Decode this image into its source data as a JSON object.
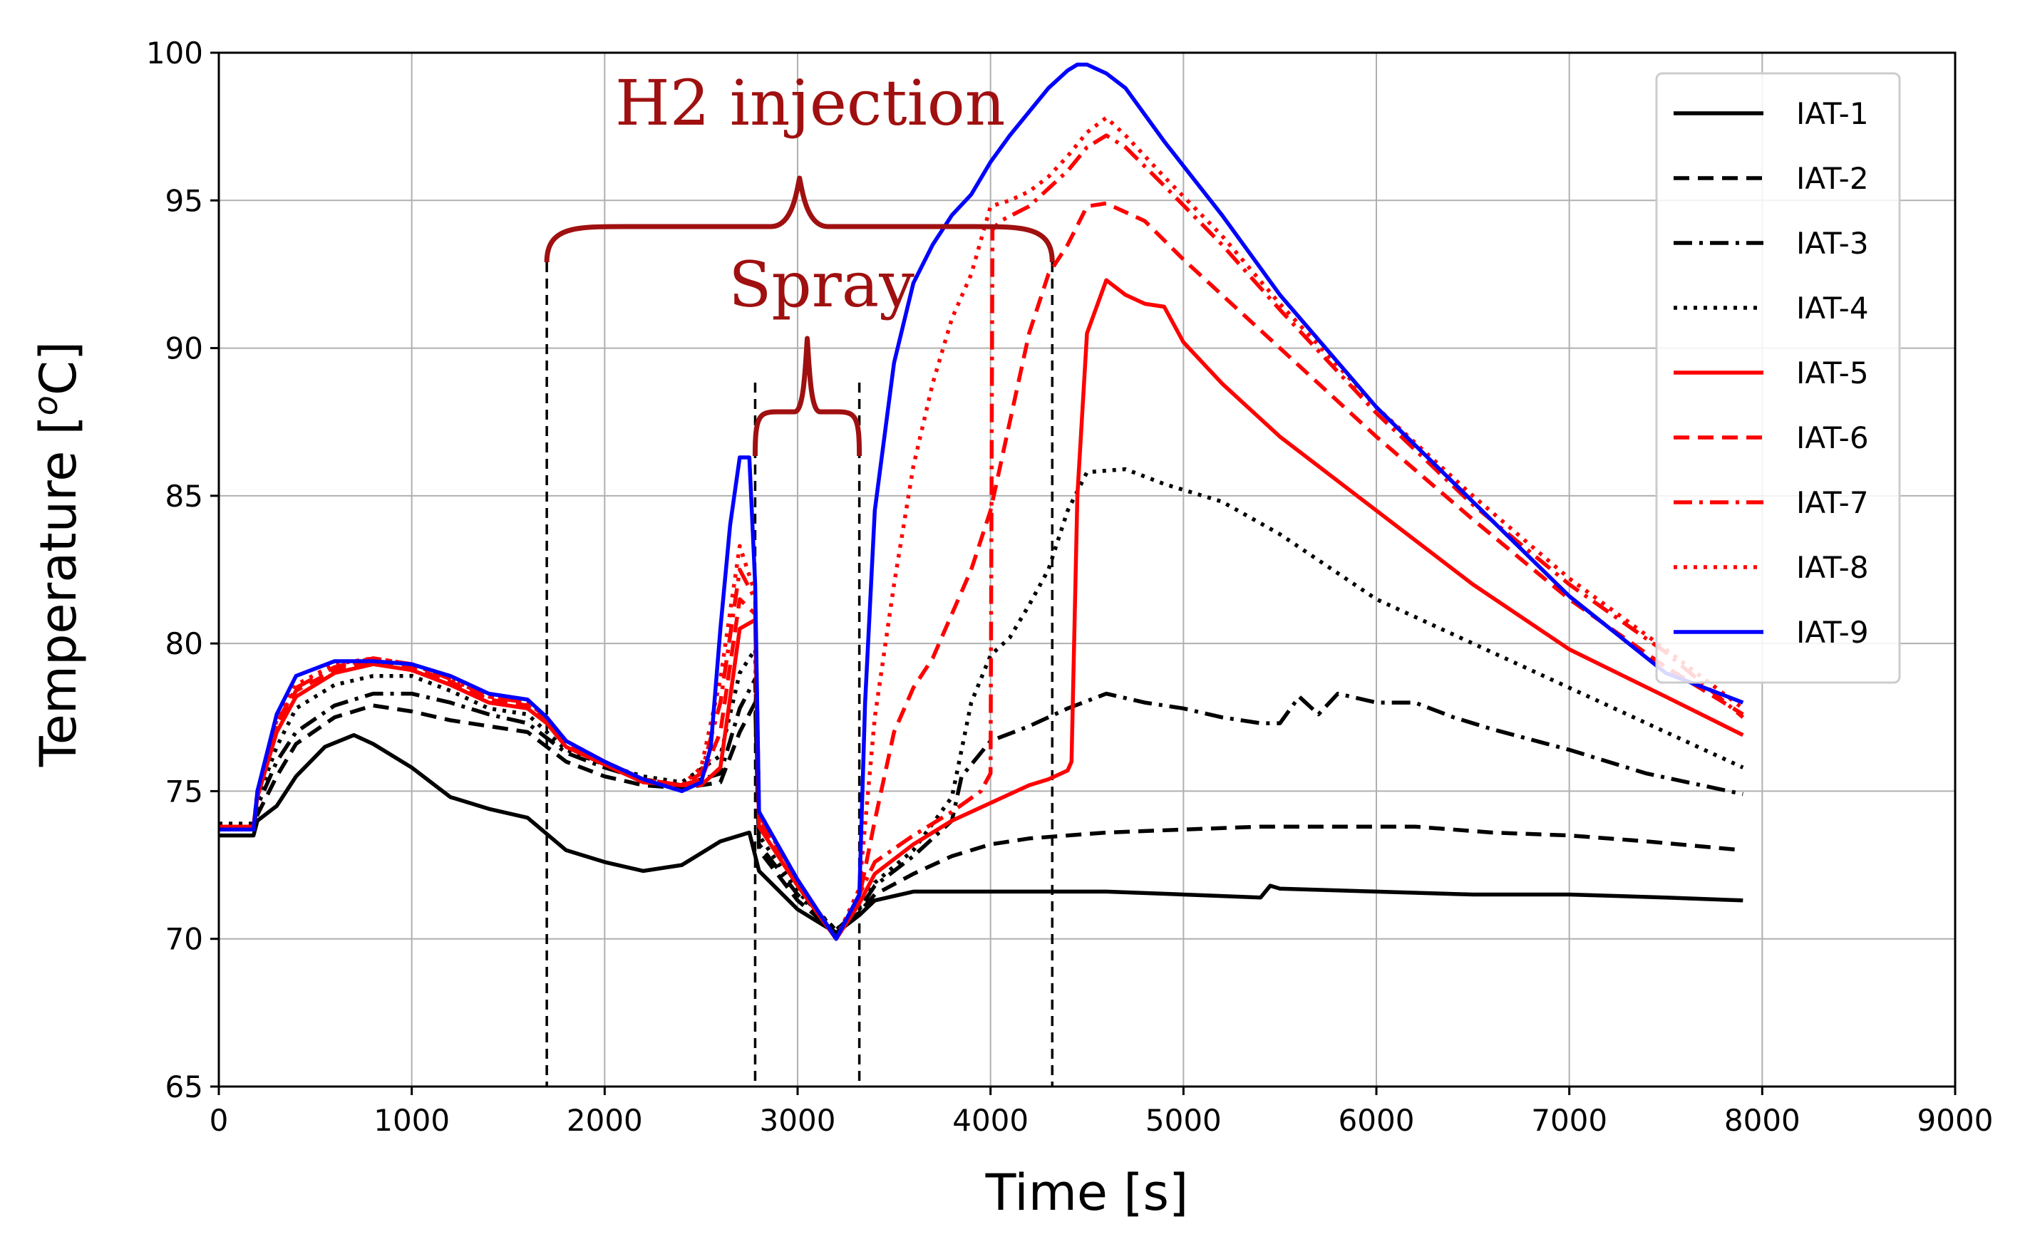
{
  "chart_data": {
    "type": "line",
    "title": "",
    "xlabel": "Time [s]",
    "ylabel_prefix": "Temperature [",
    "ylabel_super": "o",
    "ylabel_suffix": "C]",
    "xlim": [
      0,
      9000
    ],
    "ylim": [
      65,
      100
    ],
    "xticks": [
      0,
      1000,
      2000,
      3000,
      4000,
      5000,
      6000,
      7000,
      8000,
      9000
    ],
    "yticks": [
      65,
      70,
      75,
      80,
      85,
      90,
      95,
      100
    ],
    "grid": true,
    "legend_position": "top-right",
    "series": [
      {
        "name": "IAT-1",
        "color": "#000000",
        "dash": "solid",
        "x": [
          0,
          180,
          200,
          300,
          400,
          550,
          700,
          800,
          1000,
          1200,
          1400,
          1600,
          1800,
          2000,
          2200,
          2400,
          2600,
          2750,
          2800,
          3000,
          3200,
          3320,
          3400,
          3600,
          3800,
          4000,
          4300,
          4600,
          5000,
          5400,
          5450,
          5500,
          6000,
          6500,
          7000,
          7500,
          7900
        ],
        "y": [
          73.5,
          73.5,
          74.0,
          74.5,
          75.5,
          76.5,
          76.9,
          76.6,
          75.8,
          74.8,
          74.4,
          74.1,
          73.0,
          72.6,
          72.3,
          72.5,
          73.3,
          73.6,
          72.3,
          71.0,
          70.2,
          70.8,
          71.3,
          71.6,
          71.6,
          71.6,
          71.6,
          71.6,
          71.5,
          71.4,
          71.8,
          71.7,
          71.6,
          71.5,
          71.5,
          71.4,
          71.3
        ]
      },
      {
        "name": "IAT-2",
        "color": "#000000",
        "dash": "dashed",
        "x": [
          0,
          180,
          200,
          300,
          400,
          600,
          800,
          1000,
          1200,
          1400,
          1600,
          1800,
          2000,
          2200,
          2400,
          2600,
          2700,
          2780,
          2800,
          3000,
          3200,
          3320,
          3400,
          3600,
          3800,
          4000,
          4200,
          4400,
          4600,
          5000,
          5400,
          5800,
          6200,
          6600,
          7000,
          7400,
          7900
        ],
        "y": [
          73.7,
          73.7,
          74.2,
          75.5,
          76.6,
          77.5,
          77.9,
          77.7,
          77.4,
          77.2,
          77.0,
          76.0,
          75.5,
          75.2,
          75.1,
          75.3,
          77.0,
          78.0,
          73.0,
          71.3,
          70.2,
          70.9,
          71.5,
          72.2,
          72.8,
          73.2,
          73.4,
          73.5,
          73.6,
          73.7,
          73.8,
          73.8,
          73.8,
          73.6,
          73.5,
          73.3,
          73.0
        ]
      },
      {
        "name": "IAT-3",
        "color": "#000000",
        "dash": "dashdot",
        "x": [
          0,
          180,
          200,
          300,
          400,
          600,
          800,
          1000,
          1200,
          1400,
          1600,
          1800,
          2000,
          2200,
          2400,
          2600,
          2700,
          2780,
          2800,
          3000,
          3200,
          3320,
          3400,
          3600,
          3800,
          3850,
          4000,
          4200,
          4400,
          4600,
          4800,
          5000,
          5200,
          5400,
          5500,
          5600,
          5700,
          5800,
          6000,
          6200,
          6400,
          6600,
          7000,
          7400,
          7900
        ],
        "y": [
          73.8,
          73.8,
          74.5,
          76.0,
          77.0,
          77.9,
          78.3,
          78.3,
          78.0,
          77.6,
          77.3,
          76.3,
          75.8,
          75.4,
          75.2,
          75.6,
          77.8,
          78.8,
          73.2,
          71.5,
          70.3,
          71.0,
          71.8,
          72.8,
          74.0,
          75.5,
          76.7,
          77.2,
          77.8,
          78.3,
          78.0,
          77.8,
          77.5,
          77.3,
          77.3,
          78.2,
          77.6,
          78.3,
          78.0,
          78.0,
          77.5,
          77.1,
          76.4,
          75.6,
          74.9
        ]
      },
      {
        "name": "IAT-4",
        "color": "#000000",
        "dash": "dotted",
        "x": [
          0,
          180,
          200,
          300,
          400,
          600,
          800,
          1000,
          1200,
          1400,
          1600,
          1800,
          2000,
          2200,
          2400,
          2600,
          2700,
          2780,
          2800,
          3000,
          3200,
          3320,
          3400,
          3600,
          3800,
          3900,
          4000,
          4100,
          4200,
          4300,
          4400,
          4500,
          4700,
          4900,
          5200,
          5500,
          6000,
          6500,
          7000,
          7500,
          7900
        ],
        "y": [
          73.9,
          73.9,
          74.7,
          76.5,
          77.8,
          78.6,
          78.9,
          78.9,
          78.4,
          77.8,
          77.6,
          76.4,
          75.9,
          75.5,
          75.3,
          76.2,
          79.0,
          79.8,
          73.5,
          71.6,
          70.3,
          71.1,
          71.9,
          73.0,
          74.8,
          78.0,
          79.6,
          80.2,
          81.3,
          82.5,
          84.5,
          85.8,
          85.9,
          85.4,
          84.8,
          83.7,
          81.5,
          80.0,
          78.5,
          77.0,
          75.8
        ]
      },
      {
        "name": "IAT-5",
        "color": "#ff0000",
        "dash": "solid",
        "x": [
          0,
          180,
          200,
          300,
          400,
          600,
          800,
          1000,
          1200,
          1400,
          1600,
          1700,
          1800,
          2000,
          2200,
          2400,
          2500,
          2600,
          2700,
          2780,
          2800,
          3000,
          3200,
          3320,
          3400,
          3600,
          3800,
          4000,
          4200,
          4300,
          4400,
          4420,
          4450,
          4500,
          4600,
          4700,
          4800,
          4900,
          5000,
          5200,
          5500,
          6000,
          6500,
          7000,
          7500,
          7900
        ],
        "y": [
          73.8,
          73.8,
          74.8,
          77.0,
          78.2,
          79.0,
          79.3,
          79.1,
          78.6,
          78.0,
          77.8,
          77.3,
          76.5,
          75.9,
          75.3,
          75.2,
          75.2,
          75.8,
          80.5,
          80.8,
          73.8,
          71.8,
          70.0,
          71.2,
          72.2,
          73.2,
          74.0,
          74.6,
          75.2,
          75.4,
          75.7,
          76.0,
          85.0,
          90.5,
          92.3,
          91.8,
          91.5,
          91.4,
          90.2,
          88.8,
          87.0,
          84.5,
          82.0,
          79.8,
          78.2,
          76.9
        ]
      },
      {
        "name": "IAT-6",
        "color": "#ff0000",
        "dash": "dashed",
        "x": [
          0,
          180,
          200,
          300,
          400,
          600,
          800,
          1000,
          1200,
          1400,
          1600,
          1700,
          1800,
          2000,
          2200,
          2400,
          2500,
          2600,
          2700,
          2780,
          2800,
          3000,
          3200,
          3320,
          3400,
          3500,
          3600,
          3700,
          3800,
          3900,
          4000,
          4100,
          4200,
          4300,
          4400,
          4500,
          4600,
          4800,
          5000,
          5500,
          6000,
          6500,
          7000,
          7500,
          7900
        ],
        "y": [
          73.8,
          73.8,
          74.9,
          77.2,
          78.4,
          79.1,
          79.4,
          79.2,
          78.7,
          78.1,
          77.9,
          77.4,
          76.6,
          75.9,
          75.3,
          75.2,
          75.4,
          77.0,
          81.5,
          81.0,
          74.0,
          71.9,
          70.0,
          71.4,
          74.0,
          77.0,
          78.5,
          79.5,
          81.0,
          82.5,
          84.5,
          87.5,
          90.5,
          92.5,
          93.5,
          94.8,
          94.9,
          94.3,
          93.0,
          90.0,
          87.0,
          84.2,
          81.5,
          79.2,
          77.6
        ]
      },
      {
        "name": "IAT-7",
        "color": "#ff0000",
        "dash": "dashdot",
        "x": [
          0,
          180,
          200,
          300,
          400,
          600,
          800,
          1000,
          1200,
          1400,
          1600,
          1700,
          1800,
          2000,
          2200,
          2400,
          2500,
          2600,
          2700,
          2780,
          2800,
          3000,
          3200,
          3320,
          3400,
          3600,
          3800,
          3950,
          4000,
          4010,
          4050,
          4200,
          4400,
          4500,
          4600,
          4700,
          4900,
          5200,
          5500,
          6000,
          6500,
          7000,
          7500,
          7900
        ],
        "y": [
          73.8,
          73.8,
          74.9,
          77.3,
          78.5,
          79.2,
          79.5,
          79.3,
          78.8,
          78.2,
          78.0,
          77.5,
          76.7,
          76.0,
          75.4,
          75.2,
          75.6,
          78.0,
          82.5,
          81.5,
          74.2,
          72.0,
          70.0,
          71.5,
          72.6,
          73.5,
          74.3,
          75.0,
          75.6,
          94.0,
          94.3,
          94.8,
          96.0,
          96.8,
          97.2,
          96.8,
          95.5,
          93.5,
          91.3,
          87.8,
          84.7,
          82.0,
          79.7,
          77.5
        ]
      },
      {
        "name": "IAT-8",
        "color": "#ff0000",
        "dash": "dotted",
        "x": [
          0,
          180,
          200,
          300,
          400,
          600,
          800,
          1000,
          1200,
          1400,
          1600,
          1700,
          1800,
          2000,
          2200,
          2400,
          2500,
          2600,
          2700,
          2780,
          2800,
          3000,
          3200,
          3320,
          3400,
          3500,
          3600,
          3700,
          3800,
          3900,
          4000,
          4100,
          4200,
          4300,
          4400,
          4500,
          4600,
          4700,
          4900,
          5200,
          5500,
          6000,
          6500,
          7000,
          7500,
          7900
        ],
        "y": [
          73.8,
          73.8,
          75.0,
          77.4,
          78.6,
          79.3,
          79.5,
          79.3,
          78.8,
          78.2,
          78.0,
          77.5,
          76.7,
          76.0,
          75.4,
          75.2,
          75.8,
          78.8,
          83.3,
          81.7,
          74.3,
          72.0,
          70.0,
          71.7,
          77.5,
          82.0,
          86.0,
          88.8,
          91.0,
          92.5,
          94.8,
          95.0,
          95.3,
          95.8,
          96.5,
          97.3,
          97.8,
          97.2,
          95.8,
          93.8,
          91.5,
          88.0,
          85.0,
          82.2,
          79.8,
          77.8
        ]
      },
      {
        "name": "IAT-9",
        "color": "#0000ff",
        "dash": "solid",
        "x": [
          0,
          180,
          200,
          300,
          400,
          600,
          800,
          1000,
          1200,
          1400,
          1600,
          1700,
          1800,
          2000,
          2200,
          2400,
          2500,
          2550,
          2600,
          2650,
          2700,
          2750,
          2780,
          2800,
          3000,
          3200,
          3320,
          3350,
          3400,
          3500,
          3600,
          3700,
          3800,
          3900,
          4000,
          4100,
          4200,
          4300,
          4400,
          4450,
          4500,
          4600,
          4700,
          4900,
          5200,
          5500,
          6000,
          6500,
          7000,
          7500,
          7900
        ],
        "y": [
          73.7,
          73.7,
          75.0,
          77.6,
          78.9,
          79.4,
          79.4,
          79.3,
          78.9,
          78.3,
          78.1,
          77.5,
          76.7,
          76.0,
          75.4,
          75.0,
          75.3,
          76.5,
          80.5,
          84.0,
          86.3,
          86.3,
          82.0,
          74.3,
          72.0,
          70.0,
          71.5,
          78.0,
          84.5,
          89.5,
          92.2,
          93.5,
          94.5,
          95.2,
          96.3,
          97.2,
          98.0,
          98.8,
          99.4,
          99.6,
          99.6,
          99.3,
          98.8,
          97.0,
          94.5,
          91.8,
          88.0,
          84.8,
          81.6,
          79.0,
          78.0
        ]
      }
    ],
    "annotations": {
      "h2_injection": {
        "label": "H2 injection",
        "x_start": 1700,
        "x_end": 4320
      },
      "spray": {
        "label": "Spray",
        "x_start": 2780,
        "x_end": 3320
      }
    }
  }
}
